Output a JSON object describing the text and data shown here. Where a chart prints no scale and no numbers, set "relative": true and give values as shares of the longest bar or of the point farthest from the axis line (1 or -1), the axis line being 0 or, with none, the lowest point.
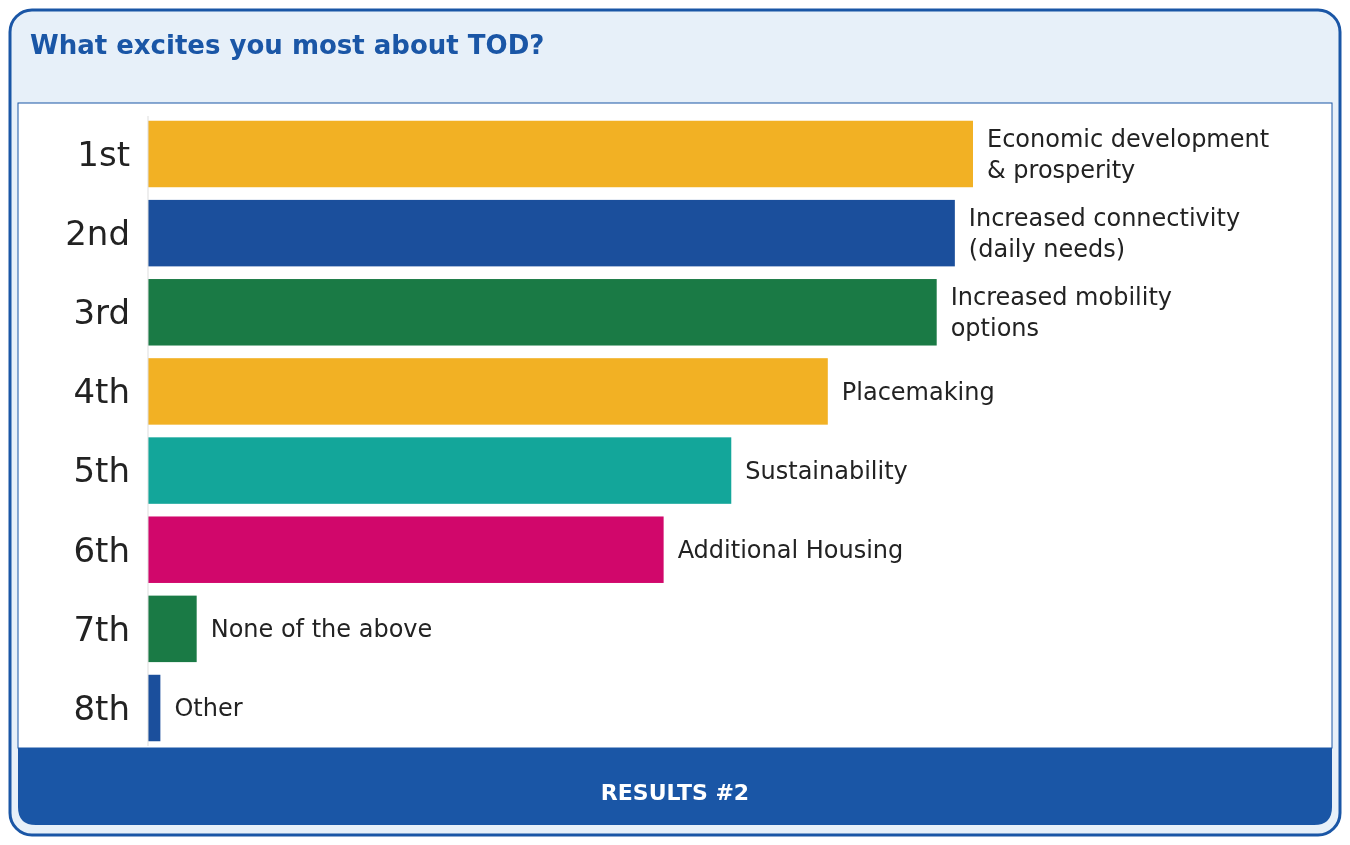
{
  "chart_data": {
    "type": "bar",
    "orientation": "horizontal",
    "relative": true,
    "title": "What excites you most about TOD?",
    "categories": [
      "1st",
      "2nd",
      "3rd",
      "4th",
      "5th",
      "6th",
      "7th",
      "8th"
    ],
    "values": [
      1,
      0.978,
      0.956,
      0.824,
      0.707,
      0.625,
      0.059,
      0.015
    ],
    "colors": [
      "#f2b124",
      "#1b4f9c",
      "#1a7a45",
      "#f2b124",
      "#13a69a",
      "#d1076b",
      "#1a7a45",
      "#1b4f9c"
    ],
    "annotations": [
      {
        "text": "Economic development\n& prosperity",
        "x": 1,
        "y": "1st"
      },
      {
        "text": "Increased connectivity\n(daily needs)",
        "x": 0.978,
        "y": "2nd"
      },
      {
        "text": "Increased mobility\noptions",
        "x": 0.956,
        "y": "3rd"
      },
      {
        "text": "Placemaking",
        "x": 0.824,
        "y": "4th"
      },
      {
        "text": "Sustainability",
        "x": 0.707,
        "y": "5th"
      },
      {
        "text": "Additional Housing",
        "x": 0.625,
        "y": "6th"
      },
      {
        "text": "None of the above",
        "x": 0.059,
        "y": "7th"
      },
      {
        "text": "Other",
        "x": 0.015,
        "y": "8th"
      },
      "RESULTS #2"
    ]
  }
}
